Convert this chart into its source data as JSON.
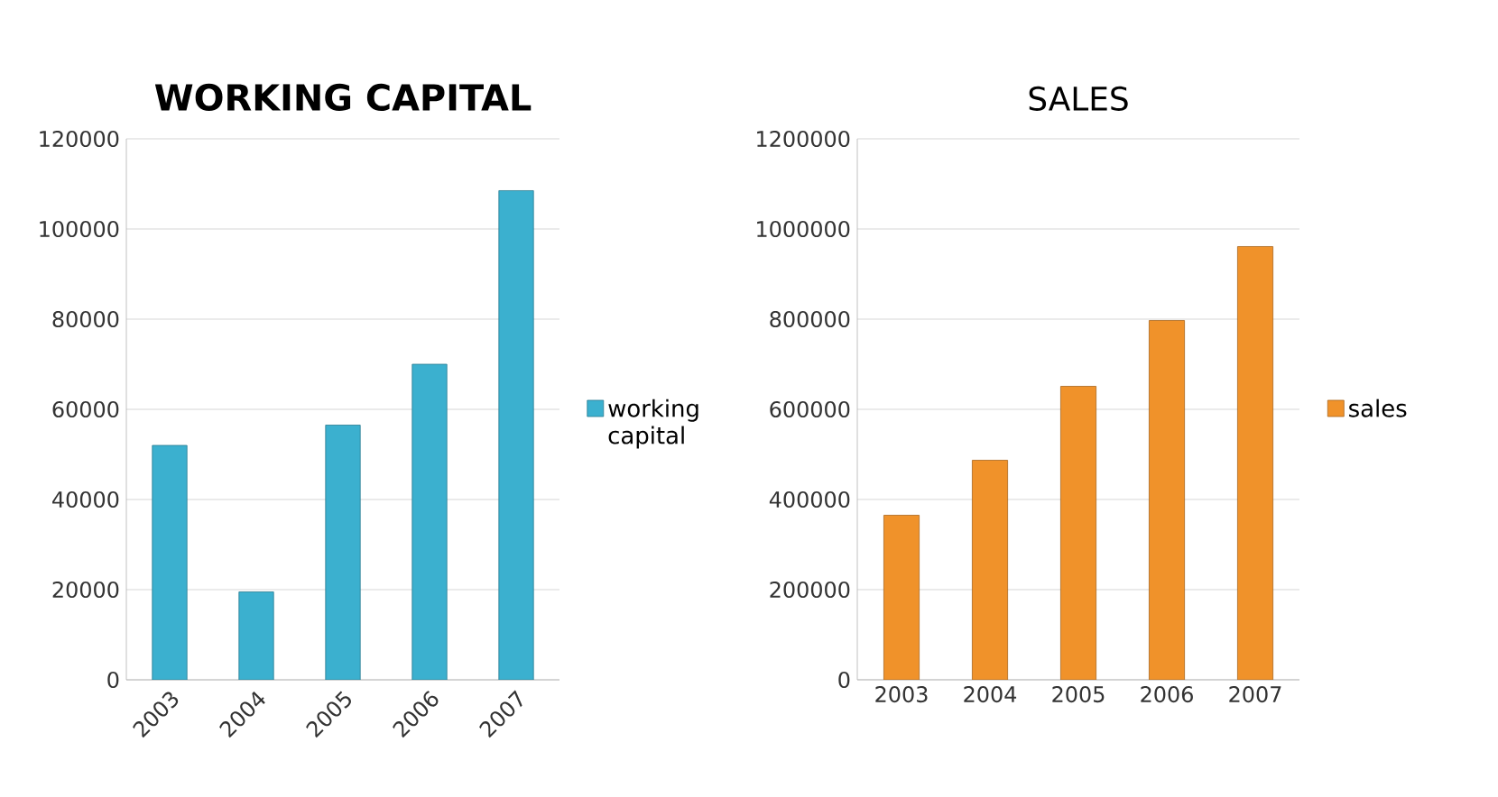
{
  "chart_data": [
    {
      "type": "bar",
      "title": "WORKING CAPITAL",
      "categories": [
        "2003",
        "2004",
        "2005",
        "2006",
        "2007"
      ],
      "series": [
        {
          "name": "working capital",
          "color": "#3bb0cf",
          "values": [
            52000,
            19500,
            56500,
            70000,
            108500
          ]
        }
      ],
      "ylim": [
        0,
        120000
      ],
      "yticks": [
        0,
        20000,
        40000,
        60000,
        80000,
        100000,
        120000
      ],
      "grid": "y",
      "legend": "right"
    },
    {
      "type": "bar",
      "title": "SALES",
      "categories": [
        "2003",
        "2004",
        "2005",
        "2006",
        "2007"
      ],
      "series": [
        {
          "name": "sales",
          "color": "#f0922a",
          "values": [
            365000,
            487000,
            651000,
            797000,
            961000
          ]
        }
      ],
      "ylim": [
        0,
        1200000
      ],
      "yticks": [
        0,
        200000,
        400000,
        600000,
        800000,
        1000000,
        1200000
      ],
      "grid": "y",
      "legend": "right"
    }
  ]
}
